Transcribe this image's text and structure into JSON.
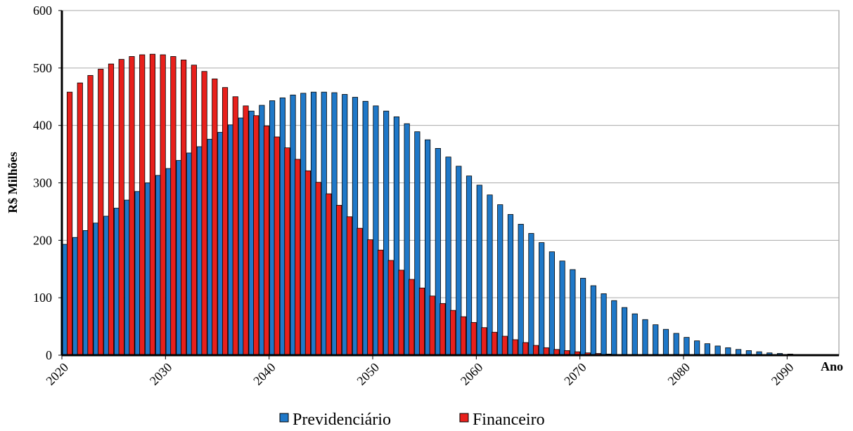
{
  "chart_data": {
    "type": "bar",
    "x_label": "Ano",
    "y_label": "R$ Milhões",
    "x": [
      2020,
      2021,
      2022,
      2023,
      2024,
      2025,
      2026,
      2027,
      2028,
      2029,
      2030,
      2031,
      2032,
      2033,
      2034,
      2035,
      2036,
      2037,
      2038,
      2039,
      2040,
      2041,
      2042,
      2043,
      2044,
      2045,
      2046,
      2047,
      2048,
      2049,
      2050,
      2051,
      2052,
      2053,
      2054,
      2055,
      2056,
      2057,
      2058,
      2059,
      2060,
      2061,
      2062,
      2063,
      2064,
      2065,
      2066,
      2067,
      2068,
      2069,
      2070,
      2071,
      2072,
      2073,
      2074,
      2075,
      2076,
      2077,
      2078,
      2079,
      2080,
      2081,
      2082,
      2083,
      2084,
      2085,
      2086,
      2087,
      2088,
      2089,
      2090,
      2091,
      2092,
      2093,
      2094
    ],
    "series": [
      {
        "name": "Previdenciário",
        "color": "#1f78c8",
        "values": [
          193,
          205,
          217,
          230,
          242,
          256,
          270,
          285,
          300,
          313,
          325,
          339,
          352,
          363,
          376,
          388,
          401,
          413,
          425,
          435,
          443,
          448,
          453,
          456,
          458,
          458,
          457,
          454,
          449,
          442,
          434,
          425,
          415,
          403,
          389,
          375,
          360,
          345,
          329,
          312,
          296,
          279,
          262,
          245,
          228,
          212,
          196,
          180,
          164,
          149,
          134,
          121,
          107,
          95,
          83,
          72,
          62,
          53,
          45,
          38,
          31,
          25,
          20,
          16,
          13,
          10,
          8,
          6,
          4,
          3,
          2,
          1,
          1,
          0,
          0
        ]
      },
      {
        "name": "Financeiro",
        "color": "#e8201c",
        "values": [
          458,
          474,
          487,
          498,
          507,
          515,
          520,
          523,
          524,
          523,
          520,
          514,
          505,
          494,
          481,
          466,
          450,
          434,
          417,
          399,
          380,
          361,
          341,
          321,
          301,
          281,
          261,
          241,
          221,
          201,
          183,
          165,
          148,
          132,
          117,
          103,
          90,
          78,
          67,
          57,
          48,
          40,
          33,
          27,
          22,
          17,
          13,
          10,
          8,
          6,
          4,
          3,
          2,
          1,
          1,
          0,
          0,
          0,
          0,
          0,
          0,
          0,
          0,
          0,
          0,
          0,
          0,
          0,
          0,
          0,
          0,
          0,
          0,
          0,
          0
        ]
      }
    ],
    "xlim": [
      2020,
      2095
    ],
    "xticks": [
      2020,
      2030,
      2040,
      2050,
      2060,
      2070,
      2080,
      2090
    ],
    "ylim": [
      0,
      600
    ],
    "yticks": [
      0,
      100,
      200,
      300,
      400,
      500,
      600
    ],
    "grid": true
  }
}
